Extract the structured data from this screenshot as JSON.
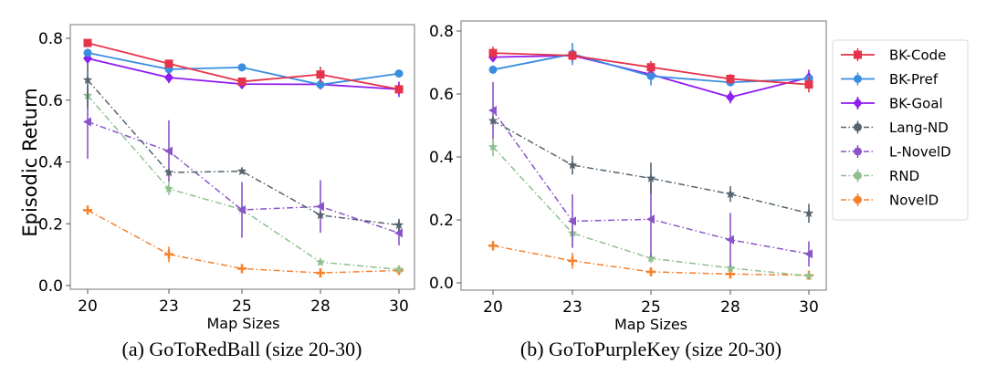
{
  "figure": {
    "captions": [
      "(a) GoToRedBall (size 20-30)",
      "(b) GoToPurpleKey (size 20-30)"
    ]
  },
  "legend": {
    "placement": "right",
    "entries": [
      {
        "name": "BK-Code",
        "color": "#e5334b",
        "style": "solid",
        "marker": "square"
      },
      {
        "name": "BK-Pref",
        "color": "#3a8ee0",
        "style": "solid",
        "marker": "circle"
      },
      {
        "name": "BK-Goal",
        "color": "#8f1cf0",
        "style": "solid",
        "marker": "diamond"
      },
      {
        "name": "Lang-ND",
        "color": "#55646f",
        "style": "dashdot",
        "marker": "star"
      },
      {
        "name": "L-NovelD",
        "color": "#8a55c8",
        "style": "dashdot",
        "marker": "triangle"
      },
      {
        "name": "RND",
        "color": "#8fc08f",
        "style": "dashdot",
        "marker": "star"
      },
      {
        "name": "NovelD",
        "color": "#f5822e",
        "style": "dashdot",
        "marker": "plus"
      }
    ]
  },
  "chart_data": [
    {
      "type": "line",
      "title": "(a) GoToRedBall (size 20-30)",
      "xlabel": "Map Sizes",
      "ylabel": "Episodic Return",
      "categories": [
        "20",
        "23",
        "25",
        "28",
        "30"
      ],
      "yticks": [
        "0.0",
        "0.2",
        "0.4",
        "0.6",
        "0.8"
      ],
      "ylim": [
        0.0,
        0.8
      ],
      "grid": false,
      "series": [
        {
          "name": "BK-Code",
          "values": [
            0.785,
            0.718,
            0.66,
            0.683,
            0.635
          ],
          "err": [
            0.012,
            0.012,
            0.01,
            0.025,
            0.012
          ]
        },
        {
          "name": "BK-Pref",
          "values": [
            0.753,
            0.7,
            0.706,
            0.65,
            0.686
          ],
          "err": [
            0.01,
            0.008,
            0.008,
            0.008,
            0.01
          ]
        },
        {
          "name": "BK-Goal",
          "values": [
            0.735,
            0.673,
            0.652,
            0.651,
            0.635
          ],
          "err": [
            0.012,
            0.018,
            0.01,
            0.015,
            0.025
          ]
        },
        {
          "name": "Lang-ND",
          "values": [
            0.665,
            0.366,
            0.37,
            0.228,
            0.196
          ],
          "err": [
            0.09,
            0.01,
            0.008,
            0.01,
            0.02
          ]
        },
        {
          "name": "L-NovelD",
          "values": [
            0.53,
            0.435,
            0.245,
            0.256,
            0.17
          ],
          "err": [
            0.12,
            0.1,
            0.09,
            0.085,
            0.04
          ]
        },
        {
          "name": "RND",
          "values": [
            0.615,
            0.313,
            0.246,
            0.076,
            0.052
          ],
          "err": [
            0.02,
            0.02,
            0.015,
            0.01,
            0.008
          ]
        },
        {
          "name": "NovelD",
          "values": [
            0.244,
            0.101,
            0.055,
            0.041,
            0.049
          ],
          "err": [
            0.008,
            0.025,
            0.01,
            0.01,
            0.015
          ]
        }
      ]
    },
    {
      "type": "line",
      "title": "(b) GoToPurpleKey (size 20-30)",
      "xlabel": "Map Sizes",
      "ylabel": "",
      "categories": [
        "20",
        "23",
        "25",
        "28",
        "30"
      ],
      "yticks": [
        "0.0",
        "0.2",
        "0.4",
        "0.6",
        "0.8"
      ],
      "ylim": [
        0.0,
        0.8
      ],
      "grid": false,
      "series": [
        {
          "name": "BK-Code",
          "values": [
            0.73,
            0.722,
            0.685,
            0.648,
            0.63
          ],
          "err": [
            0.02,
            0.015,
            0.02,
            0.015,
            0.025
          ]
        },
        {
          "name": "BK-Pref",
          "values": [
            0.677,
            0.727,
            0.657,
            0.637,
            0.648
          ],
          "err": [
            0.012,
            0.035,
            0.03,
            0.01,
            0.012
          ]
        },
        {
          "name": "BK-Goal",
          "values": [
            0.717,
            0.722,
            0.662,
            0.59,
            0.652
          ],
          "err": [
            0.012,
            0.02,
            0.012,
            0.02,
            0.025
          ]
        },
        {
          "name": "Lang-ND",
          "values": [
            0.515,
            0.374,
            0.332,
            0.282,
            0.221
          ],
          "err": [
            0.012,
            0.03,
            0.05,
            0.025,
            0.03
          ]
        },
        {
          "name": "L-NovelD",
          "values": [
            0.548,
            0.196,
            0.202,
            0.137,
            0.092
          ],
          "err": [
            0.09,
            0.085,
            0.12,
            0.085,
            0.04
          ]
        },
        {
          "name": "RND",
          "values": [
            0.432,
            0.158,
            0.078,
            0.047,
            0.022
          ],
          "err": [
            0.03,
            0.045,
            0.015,
            0.01,
            0.005
          ]
        },
        {
          "name": "NovelD",
          "values": [
            0.118,
            0.07,
            0.035,
            0.028,
            0.024
          ],
          "err": [
            0.015,
            0.025,
            0.008,
            0.008,
            0.006
          ]
        }
      ]
    }
  ]
}
